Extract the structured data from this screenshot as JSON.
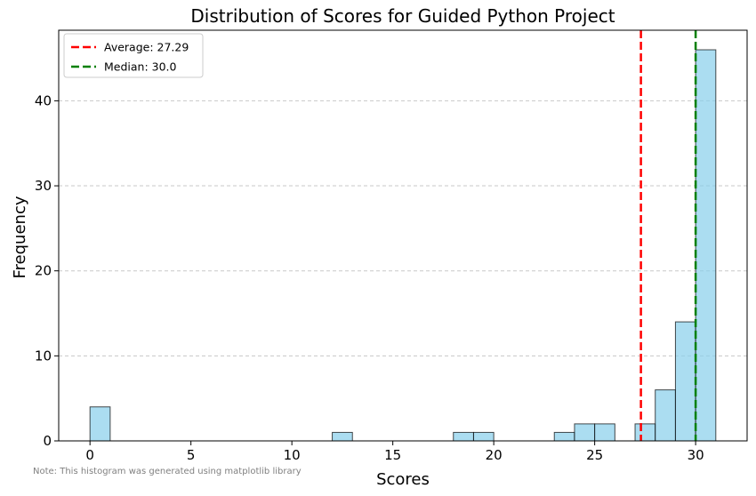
{
  "chart_data": {
    "type": "bar",
    "title": "Distribution of Scores for Guided Python Project",
    "xlabel": "Scores",
    "ylabel": "Frequency",
    "xlim": [
      -1.55,
      32.55
    ],
    "ylim": [
      0,
      48.3
    ],
    "xticks": [
      0,
      5,
      10,
      15,
      20,
      25,
      30
    ],
    "yticks": [
      0,
      10,
      20,
      30,
      40
    ],
    "grid": "y-dashed",
    "bin_width": 1,
    "bins": [
      {
        "x0": 0,
        "x1": 1,
        "count": 4
      },
      {
        "x0": 12,
        "x1": 13,
        "count": 1
      },
      {
        "x0": 18,
        "x1": 19,
        "count": 1
      },
      {
        "x0": 19,
        "x1": 20,
        "count": 1
      },
      {
        "x0": 23,
        "x1": 24,
        "count": 1
      },
      {
        "x0": 24,
        "x1": 25,
        "count": 2
      },
      {
        "x0": 25,
        "x1": 26,
        "count": 2
      },
      {
        "x0": 27,
        "x1": 28,
        "count": 2
      },
      {
        "x0": 28,
        "x1": 29,
        "count": 6
      },
      {
        "x0": 29,
        "x1": 30,
        "count": 14
      },
      {
        "x0": 30,
        "x1": 31,
        "count": 46
      }
    ],
    "bar_color": "#87ceeb",
    "reference_lines": [
      {
        "label": "Average: 27.29",
        "x": 27.29,
        "color": "#ff0000"
      },
      {
        "label": "Median: 30.0",
        "x": 30.0,
        "color": "#008000"
      }
    ],
    "legend_position": "top-left"
  },
  "note": "Note: This histogram was generated using matplotlib library"
}
